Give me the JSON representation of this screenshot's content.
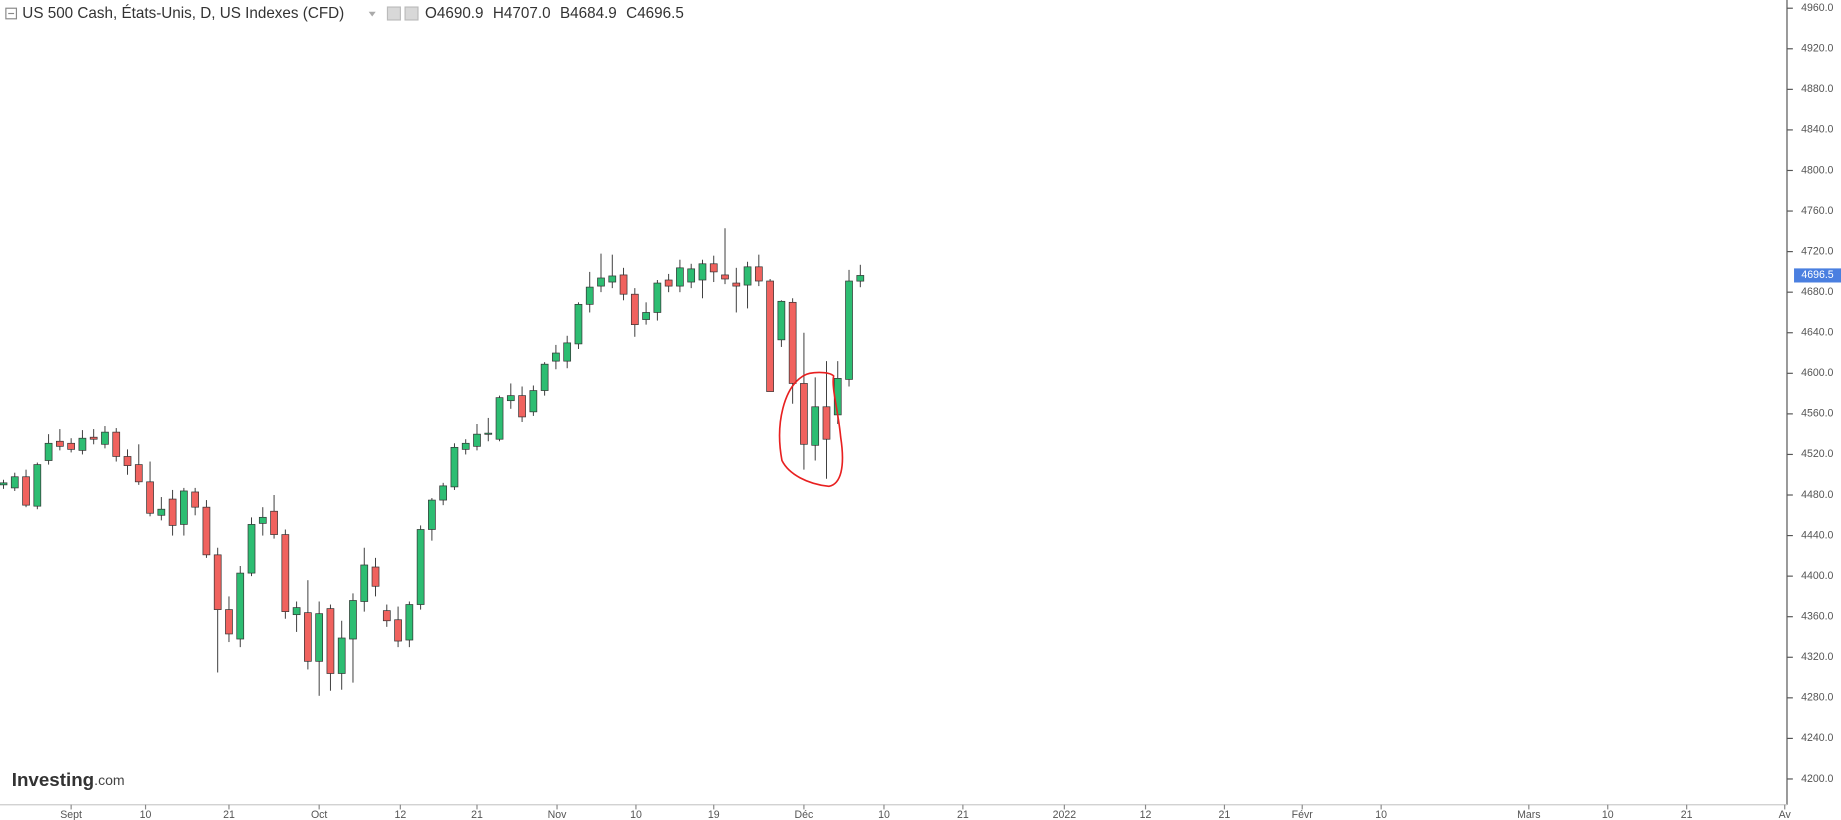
{
  "chart_data": {
    "type": "candlestick",
    "title": "US 500 Cash, États-Unis, D, US Indexes (CFD)",
    "ohlc_labels": [
      {
        "key": "O",
        "value": "4690.9"
      },
      {
        "key": "H",
        "value": "4707.0"
      },
      {
        "key": "B",
        "value": "4684.9"
      },
      {
        "key": "C",
        "value": "4696.5"
      }
    ],
    "watermark": "Investing",
    "watermark_suffix": ".com",
    "last_price": 4696.5,
    "up_color": "#2dbd72",
    "down_color": "#f0625e",
    "last_price_color": "#4a7fe0",
    "x": [
      0,
      1,
      2,
      3,
      4,
      5,
      6,
      7,
      8,
      9,
      10,
      11,
      12,
      13,
      14,
      15,
      16,
      17,
      18,
      19,
      20,
      21,
      22,
      23,
      24,
      25,
      26,
      27,
      28,
      29,
      30,
      31,
      32,
      33,
      34,
      35,
      36,
      37,
      38,
      39,
      40,
      41,
      42,
      43,
      44,
      45,
      46,
      47,
      48,
      49,
      50,
      51,
      52,
      53,
      54,
      55,
      56,
      57,
      58,
      59,
      60,
      61,
      62,
      63,
      64,
      65,
      66,
      67,
      68,
      69,
      70,
      71,
      72,
      73,
      74,
      75,
      76
    ],
    "open": [
      4490,
      4487,
      4498,
      4469,
      4514,
      4533,
      4531,
      4524,
      4537,
      4530,
      4542,
      4518,
      4510,
      4493,
      4460,
      4476,
      4451,
      4483,
      4468,
      4421,
      4367,
      4338,
      4403,
      4452,
      4464,
      4441,
      4362,
      4364,
      4316,
      4368,
      4304,
      4338,
      4375,
      4409,
      4366,
      4357,
      4337,
      4372,
      4446,
      4475,
      4488,
      4525,
      4528,
      4540,
      4535,
      4573,
      4578,
      4562,
      4583,
      4612,
      4612,
      4629,
      4668,
      4686,
      4690,
      4697,
      4678,
      4653,
      4660,
      4692,
      4686,
      4690,
      4692,
      4708,
      4697,
      4689,
      4687,
      4705,
      4691,
      4633,
      4670,
      4590,
      4529,
      4567,
      4559,
      4594,
      4690.9
    ],
    "high": [
      4495,
      4502,
      4505,
      4512,
      4540,
      4545,
      4536,
      4544,
      4545,
      4548,
      4546,
      4525,
      4530,
      4513,
      4478,
      4485,
      4487,
      4487,
      4475,
      4428,
      4380,
      4410,
      4458,
      4468,
      4480,
      4446,
      4375,
      4396,
      4375,
      4372,
      4356,
      4383,
      4428,
      4418,
      4372,
      4370,
      4375,
      4450,
      4477,
      4492,
      4531,
      4535,
      4550,
      4556,
      4578,
      4590,
      4587,
      4588,
      4611,
      4628,
      4637,
      4670,
      4700,
      4718,
      4717,
      4704,
      4684,
      4670,
      4692,
      4698,
      4712,
      4708,
      4712,
      4716,
      4743,
      4704,
      4710,
      4717,
      4693,
      4672,
      4674,
      4640,
      4596,
      4612,
      4612,
      4702,
      4707.0
    ],
    "low": [
      4486,
      4484,
      4468,
      4466,
      4510,
      4524,
      4522,
      4520,
      4530,
      4526,
      4513,
      4500,
      4490,
      4459,
      4455,
      4440,
      4440,
      4460,
      4418,
      4305,
      4335,
      4330,
      4400,
      4440,
      4437,
      4358,
      4345,
      4308,
      4282,
      4287,
      4288,
      4295,
      4365,
      4380,
      4350,
      4330,
      4330,
      4367,
      4435,
      4470,
      4485,
      4520,
      4524,
      4533,
      4533,
      4565,
      4552,
      4558,
      4578,
      4604,
      4605,
      4624,
      4660,
      4680,
      4684,
      4672,
      4636,
      4648,
      4652,
      4680,
      4680,
      4684,
      4674,
      4690,
      4688,
      4660,
      4664,
      4686,
      4582,
      4626,
      4570,
      4505,
      4514,
      4496,
      4550,
      4587,
      4684.9
    ],
    "close": [
      4492,
      4498,
      4470,
      4510,
      4531,
      4528,
      4525,
      4536,
      4535,
      4542,
      4518,
      4509,
      4493,
      4462,
      4466,
      4450,
      4484,
      4468,
      4421,
      4367,
      4343,
      4403,
      4451,
      4458,
      4441,
      4365,
      4369,
      4316,
      4363,
      4304,
      4339,
      4376,
      4411,
      4390,
      4356,
      4336,
      4372,
      4446,
      4475,
      4489,
      4527,
      4531,
      4540,
      4541,
      4576,
      4578,
      4557,
      4583,
      4609,
      4620,
      4630,
      4668,
      4685,
      4694,
      4696,
      4678,
      4648,
      4660,
      4689,
      4686,
      4704,
      4703,
      4708,
      4700,
      4693,
      4686,
      4705,
      4691,
      4582,
      4671,
      4590,
      4530,
      4567,
      4535,
      4595,
      4691,
      4696.5
    ],
    "xlim": [
      -0.31,
      158.2
    ],
    "xticks": [
      {
        "value": 6.0,
        "label": "Sept"
      },
      {
        "value": 12.6,
        "label": "10"
      },
      {
        "value": 20.0,
        "label": "21"
      },
      {
        "value": 28.0,
        "label": "Oct"
      },
      {
        "value": 35.2,
        "label": "12"
      },
      {
        "value": 42.0,
        "label": "21"
      },
      {
        "value": 49.1,
        "label": "Nov"
      },
      {
        "value": 56.1,
        "label": "10"
      },
      {
        "value": 63.0,
        "label": "19"
      },
      {
        "value": 71.0,
        "label": "Déc"
      },
      {
        "value": 78.1,
        "label": "10"
      },
      {
        "value": 85.1,
        "label": "21"
      },
      {
        "value": 94.1,
        "label": "2022"
      },
      {
        "value": 101.3,
        "label": "12"
      },
      {
        "value": 108.3,
        "label": "21"
      },
      {
        "value": 115.2,
        "label": "Févr"
      },
      {
        "value": 122.2,
        "label": "10"
      },
      {
        "value": 135.3,
        "label": "Mars"
      },
      {
        "value": 142.3,
        "label": "10"
      },
      {
        "value": 149.3,
        "label": "21"
      },
      {
        "value": 158.0,
        "label": "Av"
      }
    ],
    "ylim": [
      4174.6,
      4968.1
    ],
    "yticks": [
      {
        "value": 4200,
        "label": "4200.0"
      },
      {
        "value": 4240,
        "label": "4240.0"
      },
      {
        "value": 4280,
        "label": "4280.0"
      },
      {
        "value": 4320,
        "label": "4320.0"
      },
      {
        "value": 4360,
        "label": "4360.0"
      },
      {
        "value": 4400,
        "label": "4400.0"
      },
      {
        "value": 4440,
        "label": "4440.0"
      },
      {
        "value": 4480,
        "label": "4480.0"
      },
      {
        "value": 4520,
        "label": "4520.0"
      },
      {
        "value": 4560,
        "label": "4560.0"
      },
      {
        "value": 4600,
        "label": "4600.0"
      },
      {
        "value": 4640,
        "label": "4640.0"
      },
      {
        "value": 4680,
        "label": "4680.0"
      },
      {
        "value": 4720,
        "label": "4720.0"
      },
      {
        "value": 4760,
        "label": "4760.0"
      },
      {
        "value": 4800,
        "label": "4800.0"
      },
      {
        "value": 4840,
        "label": "4840.0"
      },
      {
        "value": 4880,
        "label": "4880.0"
      },
      {
        "value": 4920,
        "label": "4920.0"
      },
      {
        "value": 4960,
        "label": "4960.0"
      }
    ],
    "grid": false
  }
}
